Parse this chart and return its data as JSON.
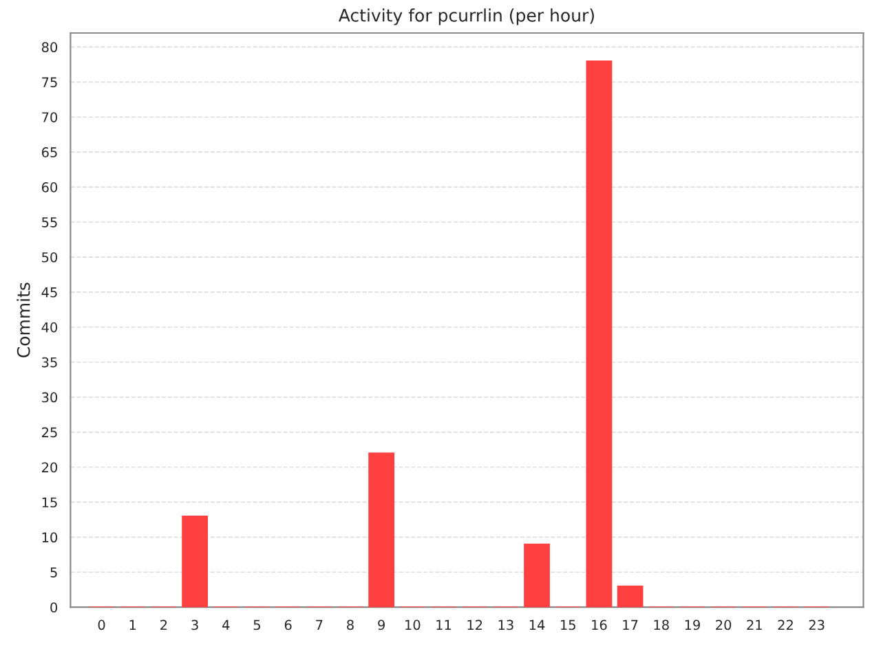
{
  "chart_data": {
    "type": "bar",
    "title": "Activity for pcurrlin (per hour)",
    "ylabel": "Commits",
    "categories": [
      "0",
      "1",
      "2",
      "3",
      "4",
      "5",
      "6",
      "7",
      "8",
      "9",
      "10",
      "11",
      "12",
      "13",
      "14",
      "15",
      "16",
      "17",
      "18",
      "19",
      "20",
      "21",
      "22",
      "23"
    ],
    "values": [
      0,
      0,
      0,
      13,
      0,
      0,
      0,
      0,
      0,
      22,
      0,
      0,
      0,
      0,
      9,
      0,
      78,
      3,
      0,
      0,
      0,
      0,
      0,
      0
    ],
    "color": "#ff4040",
    "ylim": [
      0,
      82
    ],
    "yticks": [
      0,
      5,
      10,
      15,
      20,
      25,
      30,
      35,
      40,
      45,
      50,
      55,
      60,
      65,
      70,
      75,
      80
    ],
    "grid": "y"
  }
}
